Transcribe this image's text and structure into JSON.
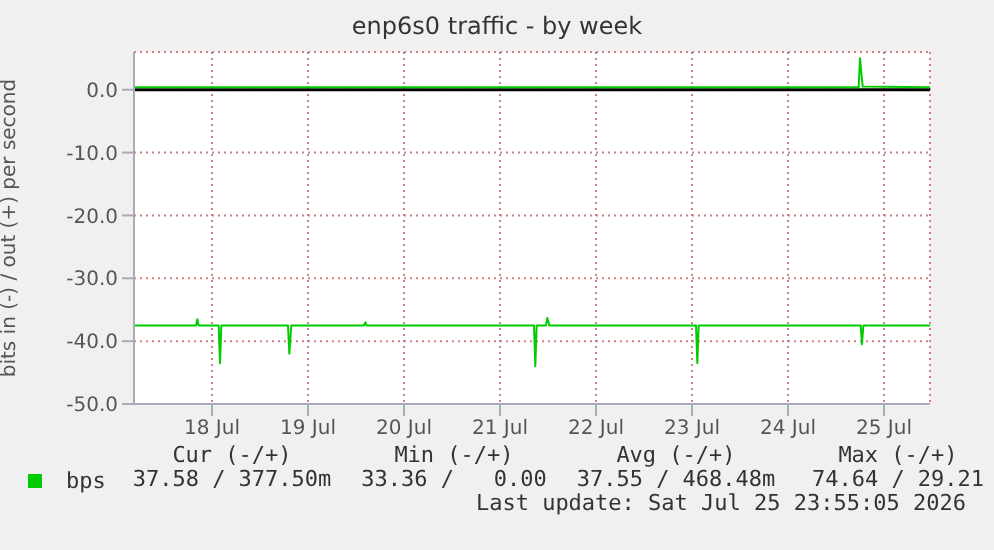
{
  "chart_data": {
    "type": "line",
    "title": "enp6s0 traffic - by week",
    "ylabel": "bits in (-) / out (+) per second",
    "xlim": [
      "2026-07-17T16:30",
      "2026-07-25T23:30"
    ],
    "xticks": [
      {
        "value": "2026-07-18T12:00",
        "label": "18 Jul"
      },
      {
        "value": "2026-07-19T12:00",
        "label": "19 Jul"
      },
      {
        "value": "2026-07-20T12:00",
        "label": "20 Jul"
      },
      {
        "value": "2026-07-21T12:00",
        "label": "21 Jul"
      },
      {
        "value": "2026-07-22T12:00",
        "label": "22 Jul"
      },
      {
        "value": "2026-07-23T12:00",
        "label": "23 Jul"
      },
      {
        "value": "2026-07-24T12:00",
        "label": "24 Jul"
      },
      {
        "value": "2026-07-25T12:00",
        "label": "25 Jul"
      }
    ],
    "ylim": [
      -50,
      6
    ],
    "yticks": [
      {
        "value": 0,
        "label": "0.0"
      },
      {
        "value": -10,
        "label": "-10.0"
      },
      {
        "value": -20,
        "label": "-20.0"
      },
      {
        "value": -30,
        "label": "-30.0"
      },
      {
        "value": -40,
        "label": "-40.0"
      },
      {
        "value": -50,
        "label": "-50.0"
      }
    ],
    "grid": true,
    "legend": "bottom",
    "marker": "none",
    "ref_lines": [
      {
        "axis": "y",
        "value": 0,
        "color": "#000000"
      }
    ],
    "series": [
      {
        "name": "bps",
        "color": "#00cc00",
        "x": [
          "2026-07-17T16:30",
          "2026-07-25T05:40",
          "2026-07-25T06:00",
          "2026-07-25T06:40",
          "2026-07-25T23:30"
        ],
        "values": [
          0.4,
          0.4,
          5,
          0.5,
          0.4
        ]
      },
      {
        "color": "#00cc00",
        "x": [
          "2026-07-17T16:30",
          "2026-07-18T08:00",
          "2026-07-18T08:20",
          "2026-07-18T08:40",
          "2026-07-18T13:40",
          "2026-07-18T14:00",
          "2026-07-18T14:20",
          "2026-07-19T07:00",
          "2026-07-19T07:20",
          "2026-07-19T07:50",
          "2026-07-20T02:00",
          "2026-07-20T02:20",
          "2026-07-20T02:40",
          "2026-07-21T20:30",
          "2026-07-21T20:50",
          "2026-07-21T21:10",
          "2026-07-21T23:30",
          "2026-07-21T23:50",
          "2026-07-22T00:20",
          "2026-07-23T13:00",
          "2026-07-23T13:20",
          "2026-07-23T13:40",
          "2026-07-25T06:10",
          "2026-07-25T06:30",
          "2026-07-25T06:50",
          "2026-07-25T23:30"
        ],
        "values": [
          -37.5,
          -37.5,
          -36.5,
          -37.5,
          -37.5,
          -43.5,
          -37.5,
          -37.5,
          -42,
          -37.5,
          -37.5,
          -37,
          -37.5,
          -37.5,
          -44,
          -37.5,
          -37.5,
          -36.3,
          -37.5,
          -37.5,
          -43.5,
          -37.5,
          -37.5,
          -40.5,
          -37.5,
          -37.5
        ]
      }
    ],
    "annotations": [
      "Cur (-/+)",
      "Min (-/+)",
      "Avg (-/+)",
      "Max (-/+)",
      "37.58 / 377.50m",
      "33.36 /   0.00",
      "37.55 / 468.48m",
      "74.64 / 29.21",
      "Last update: Sat Jul 25 23:55:05 2026"
    ]
  }
}
